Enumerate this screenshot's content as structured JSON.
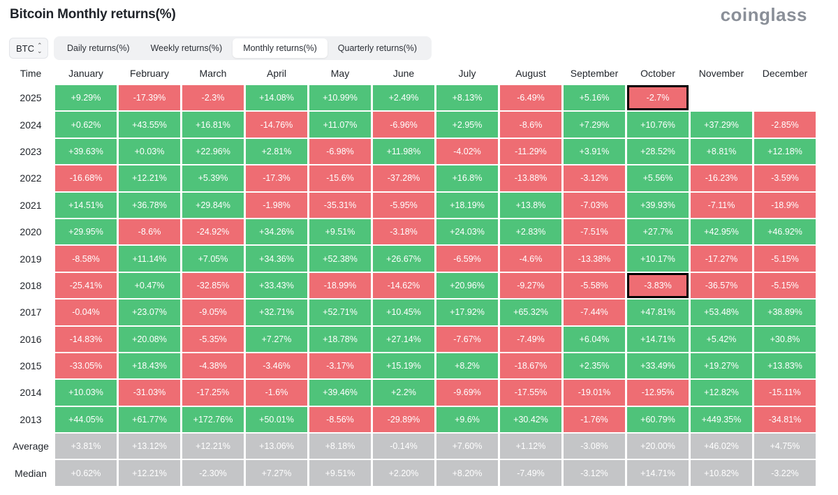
{
  "header": {
    "title": "Bitcoin Monthly returns(%)",
    "brand": "coinglass"
  },
  "controls": {
    "asset": "BTC",
    "tabs": [
      {
        "label": "Daily returns(%)",
        "active": false
      },
      {
        "label": "Weekly returns(%)",
        "active": false
      },
      {
        "label": "Monthly returns(%)",
        "active": true
      },
      {
        "label": "Quarterly returns(%)",
        "active": false
      }
    ]
  },
  "colors": {
    "positive": "#4fc37a",
    "negative": "#ee6d73",
    "summary": "#c4c5c7",
    "highlight_border": "#000000"
  },
  "table": {
    "columns": [
      "Time",
      "January",
      "February",
      "March",
      "April",
      "May",
      "June",
      "July",
      "August",
      "September",
      "October",
      "November",
      "December"
    ],
    "rows": [
      {
        "label": "2025",
        "values": [
          "+9.29%",
          "-17.39%",
          "-2.3%",
          "+14.08%",
          "+10.99%",
          "+2.49%",
          "+8.13%",
          "-6.49%",
          "+5.16%",
          "-2.7%",
          "",
          ""
        ],
        "highlight": [
          9
        ]
      },
      {
        "label": "2024",
        "values": [
          "+0.62%",
          "+43.55%",
          "+16.81%",
          "-14.76%",
          "+11.07%",
          "-6.96%",
          "+2.95%",
          "-8.6%",
          "+7.29%",
          "+10.76%",
          "+37.29%",
          "-2.85%"
        ]
      },
      {
        "label": "2023",
        "values": [
          "+39.63%",
          "+0.03%",
          "+22.96%",
          "+2.81%",
          "-6.98%",
          "+11.98%",
          "-4.02%",
          "-11.29%",
          "+3.91%",
          "+28.52%",
          "+8.81%",
          "+12.18%"
        ]
      },
      {
        "label": "2022",
        "values": [
          "-16.68%",
          "+12.21%",
          "+5.39%",
          "-17.3%",
          "-15.6%",
          "-37.28%",
          "+16.8%",
          "-13.88%",
          "-3.12%",
          "+5.56%",
          "-16.23%",
          "-3.59%"
        ]
      },
      {
        "label": "2021",
        "values": [
          "+14.51%",
          "+36.78%",
          "+29.84%",
          "-1.98%",
          "-35.31%",
          "-5.95%",
          "+18.19%",
          "+13.8%",
          "-7.03%",
          "+39.93%",
          "-7.11%",
          "-18.9%"
        ]
      },
      {
        "label": "2020",
        "values": [
          "+29.95%",
          "-8.6%",
          "-24.92%",
          "+34.26%",
          "+9.51%",
          "-3.18%",
          "+24.03%",
          "+2.83%",
          "-7.51%",
          "+27.7%",
          "+42.95%",
          "+46.92%"
        ]
      },
      {
        "label": "2019",
        "values": [
          "-8.58%",
          "+11.14%",
          "+7.05%",
          "+34.36%",
          "+52.38%",
          "+26.67%",
          "-6.59%",
          "-4.6%",
          "-13.38%",
          "+10.17%",
          "-17.27%",
          "-5.15%"
        ]
      },
      {
        "label": "2018",
        "values": [
          "-25.41%",
          "+0.47%",
          "-32.85%",
          "+33.43%",
          "-18.99%",
          "-14.62%",
          "+20.96%",
          "-9.27%",
          "-5.58%",
          "-3.83%",
          "-36.57%",
          "-5.15%"
        ],
        "highlight": [
          9
        ]
      },
      {
        "label": "2017",
        "values": [
          "-0.04%",
          "+23.07%",
          "-9.05%",
          "+32.71%",
          "+52.71%",
          "+10.45%",
          "+17.92%",
          "+65.32%",
          "-7.44%",
          "+47.81%",
          "+53.48%",
          "+38.89%"
        ]
      },
      {
        "label": "2016",
        "values": [
          "-14.83%",
          "+20.08%",
          "-5.35%",
          "+7.27%",
          "+18.78%",
          "+27.14%",
          "-7.67%",
          "-7.49%",
          "+6.04%",
          "+14.71%",
          "+5.42%",
          "+30.8%"
        ]
      },
      {
        "label": "2015",
        "values": [
          "-33.05%",
          "+18.43%",
          "-4.38%",
          "-3.46%",
          "-3.17%",
          "+15.19%",
          "+8.2%",
          "-18.67%",
          "+2.35%",
          "+33.49%",
          "+19.27%",
          "+13.83%"
        ]
      },
      {
        "label": "2014",
        "values": [
          "+10.03%",
          "-31.03%",
          "-17.25%",
          "-1.6%",
          "+39.46%",
          "+2.2%",
          "-9.69%",
          "-17.55%",
          "-19.01%",
          "-12.95%",
          "+12.82%",
          "-15.11%"
        ]
      },
      {
        "label": "2013",
        "values": [
          "+44.05%",
          "+61.77%",
          "+172.76%",
          "+50.01%",
          "-8.56%",
          "-29.89%",
          "+9.6%",
          "+30.42%",
          "-1.76%",
          "+60.79%",
          "+449.35%",
          "-34.81%"
        ]
      }
    ],
    "summary_rows": [
      {
        "label": "Average",
        "values": [
          "+3.81%",
          "+13.12%",
          "+12.21%",
          "+13.06%",
          "+8.18%",
          "-0.14%",
          "+7.60%",
          "+1.12%",
          "-3.08%",
          "+20.00%",
          "+46.02%",
          "+4.75%"
        ]
      },
      {
        "label": "Median",
        "values": [
          "+0.62%",
          "+12.21%",
          "-2.30%",
          "+7.27%",
          "+9.51%",
          "+2.20%",
          "+8.20%",
          "-7.49%",
          "-3.12%",
          "+14.71%",
          "+10.82%",
          "-3.22%"
        ]
      }
    ]
  }
}
